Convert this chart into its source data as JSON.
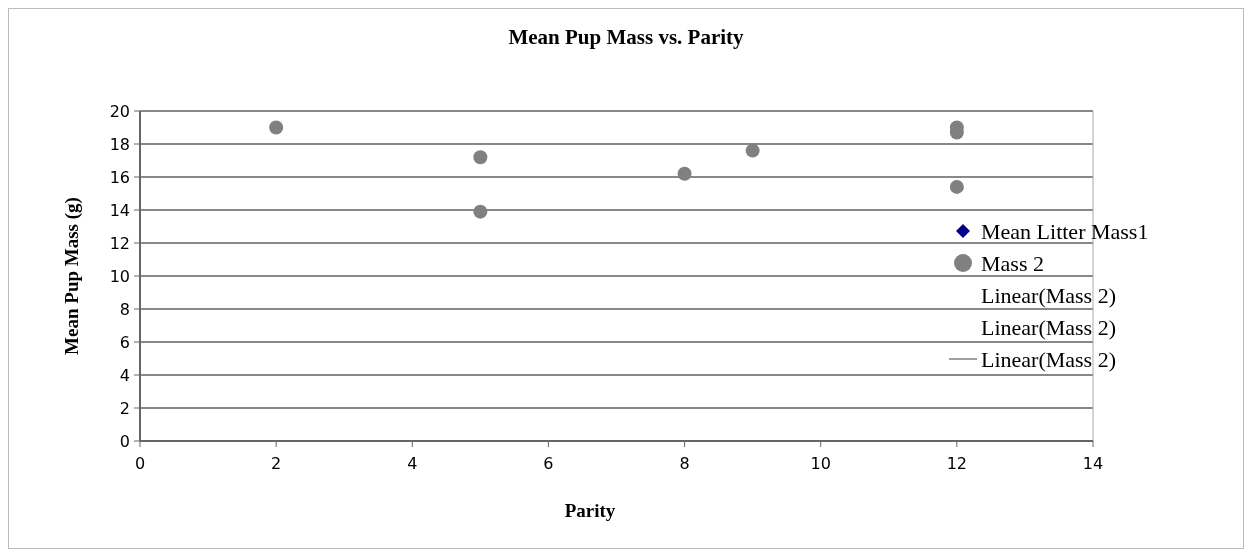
{
  "chart_data": {
    "type": "scatter",
    "title": "Mean Pup Mass vs. Parity",
    "xlabel": "Parity",
    "ylabel": "Mean Pup Mass (g)",
    "xlim": [
      0,
      14
    ],
    "xticks": [
      0,
      2,
      4,
      6,
      8,
      10,
      12,
      14
    ],
    "ylim": [
      0,
      20
    ],
    "yticks": [
      0,
      2,
      4,
      6,
      8,
      10,
      12,
      14,
      16,
      18,
      20
    ],
    "grid": "y",
    "legend": "right",
    "series": [
      {
        "name": "Mean Litter Mass1",
        "color": "#00008b",
        "marker": "diamond"
      },
      {
        "name": "Mass 2",
        "color": "#808080",
        "marker": "circle",
        "x": [
          2,
          5,
          5,
          8,
          9,
          12,
          12,
          12
        ],
        "values": [
          19.0,
          17.2,
          13.9,
          16.2,
          17.6,
          19.0,
          18.7,
          15.4
        ]
      },
      {
        "name": "Linear(Mass 2)",
        "type": "line"
      },
      {
        "name": "Linear(Mass 2)",
        "type": "line"
      },
      {
        "name": "Linear(Mass 2)",
        "type": "line",
        "color": "#a0a0a0"
      }
    ]
  }
}
